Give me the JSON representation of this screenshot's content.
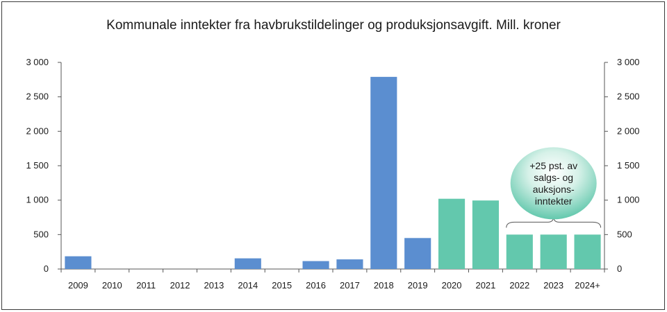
{
  "chart_data": {
    "type": "bar",
    "title": "Kommunale inntekter fra havbrukstildelinger og produksjonsavgift. Mill. kroner",
    "xlabel": "",
    "ylabel": "",
    "categories": [
      "2009",
      "2010",
      "2011",
      "2012",
      "2013",
      "2014",
      "2015",
      "2016",
      "2017",
      "2018",
      "2019",
      "2020",
      "2021",
      "2022",
      "2023",
      "2024+"
    ],
    "values": [
      185,
      0,
      0,
      0,
      0,
      155,
      0,
      115,
      140,
      2790,
      450,
      1020,
      995,
      500,
      500,
      500
    ],
    "bar_colors": [
      "#5b8ed0",
      "#5b8ed0",
      "#5b8ed0",
      "#5b8ed0",
      "#5b8ed0",
      "#5b8ed0",
      "#5b8ed0",
      "#5b8ed0",
      "#5b8ed0",
      "#5b8ed0",
      "#5b8ed0",
      "#63c8ad",
      "#63c8ad",
      "#63c8ad",
      "#63c8ad",
      "#63c8ad"
    ],
    "ylim": [
      0,
      3000
    ],
    "yticks": [
      0,
      500,
      1000,
      1500,
      2000,
      2500,
      3000
    ],
    "ytick_labels": [
      "0",
      "500",
      "1 000",
      "1 500",
      "2 000",
      "2 500",
      "3 000"
    ],
    "secondary_axis": true,
    "grid": false,
    "annotation": {
      "lines": [
        "+25  pst. av",
        "salgs-  og",
        "auksjons-",
        "inntekter"
      ],
      "brace_over": [
        "2022",
        "2023",
        "2024+"
      ],
      "fill_color": "#63c8ad"
    }
  }
}
